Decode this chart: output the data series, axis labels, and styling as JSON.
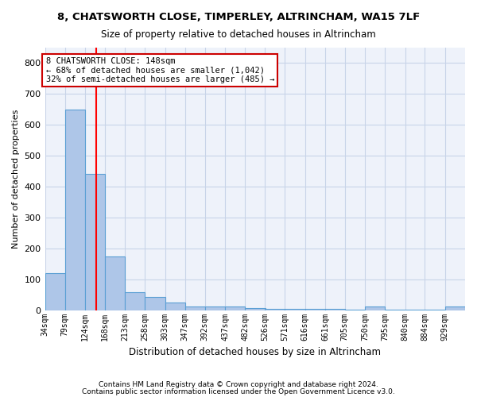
{
  "title": "8, CHATSWORTH CLOSE, TIMPERLEY, ALTRINCHAM, WA15 7LF",
  "subtitle": "Size of property relative to detached houses in Altrincham",
  "xlabel": "Distribution of detached houses by size in Altrincham",
  "ylabel": "Number of detached properties",
  "bin_labels": [
    "34sqm",
    "79sqm",
    "124sqm",
    "168sqm",
    "213sqm",
    "258sqm",
    "303sqm",
    "347sqm",
    "392sqm",
    "437sqm",
    "482sqm",
    "526sqm",
    "571sqm",
    "616sqm",
    "661sqm",
    "705sqm",
    "750sqm",
    "795sqm",
    "840sqm",
    "884sqm",
    "929sqm"
  ],
  "bin_left_edges": [
    34,
    79,
    124,
    168,
    213,
    258,
    303,
    347,
    392,
    437,
    482,
    526,
    571,
    616,
    661,
    705,
    750,
    795,
    840,
    884,
    929
  ],
  "bin_width": 45,
  "bar_values": [
    120,
    650,
    440,
    175,
    58,
    42,
    25,
    12,
    12,
    12,
    8,
    5,
    3,
    3,
    3,
    2,
    12,
    2,
    2,
    2,
    12
  ],
  "bar_color": "#aec6e8",
  "bar_edge_color": "#5a9fd4",
  "red_line_x": 148,
  "xlim_left": 34,
  "xlim_right": 974,
  "ylim": [
    0,
    850
  ],
  "yticks": [
    0,
    100,
    200,
    300,
    400,
    500,
    600,
    700,
    800
  ],
  "annotation_line1": "8 CHATSWORTH CLOSE: 148sqm",
  "annotation_line2": "← 68% of detached houses are smaller (1,042)",
  "annotation_line3": "32% of semi-detached houses are larger (485) →",
  "annotation_box_color": "#ffffff",
  "annotation_box_edge_color": "#cc0000",
  "footer_line1": "Contains HM Land Registry data © Crown copyright and database right 2024.",
  "footer_line2": "Contains public sector information licensed under the Open Government Licence v3.0.",
  "grid_color": "#c8d4e8",
  "background_color": "#eef2fa"
}
